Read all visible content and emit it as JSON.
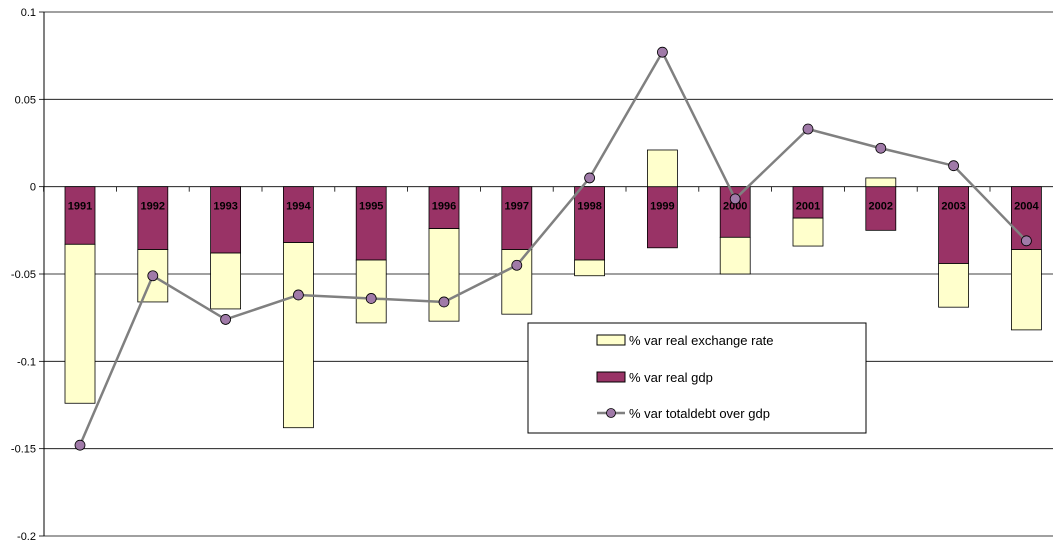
{
  "chart_data": {
    "type": "bar",
    "stacked": true,
    "categories": [
      "1991",
      "1992",
      "1993",
      "1994",
      "1995",
      "1996",
      "1997",
      "1998",
      "1999",
      "2000",
      "2001",
      "2002",
      "2003",
      "2004"
    ],
    "series": [
      {
        "name": "% var real exchange rate",
        "kind": "bar",
        "color": "#ffffcc",
        "values": [
          -0.091,
          -0.03,
          -0.032,
          -0.106,
          -0.036,
          -0.053,
          -0.037,
          -0.009,
          0.021,
          -0.021,
          -0.016,
          0.005,
          -0.025,
          -0.046
        ]
      },
      {
        "name": "% var real gdp",
        "kind": "bar",
        "color": "#993366",
        "values": [
          -0.033,
          -0.036,
          -0.038,
          -0.032,
          -0.042,
          -0.024,
          -0.036,
          -0.042,
          -0.035,
          -0.029,
          -0.018,
          -0.025,
          -0.044,
          -0.036
        ]
      },
      {
        "name": "% var totaldebt over gdp",
        "kind": "line",
        "color": "#808080",
        "marker_color": "#a07aa8",
        "values": [
          -0.148,
          -0.051,
          -0.076,
          -0.062,
          -0.064,
          -0.066,
          -0.045,
          0.005,
          0.077,
          -0.007,
          0.033,
          0.022,
          0.012,
          -0.031
        ]
      }
    ],
    "ylim": [
      -0.2,
      0.1
    ],
    "yticks": [
      "0.1",
      "0.05",
      "0",
      "-0.05",
      "-0.1",
      "-0.15",
      "-0.2"
    ],
    "ytick_values": [
      0.1,
      0.05,
      0,
      -0.05,
      -0.1,
      -0.15,
      -0.2
    ],
    "grid": true,
    "legend_position": "center-right",
    "title": "",
    "xlabel": "",
    "ylabel": ""
  }
}
